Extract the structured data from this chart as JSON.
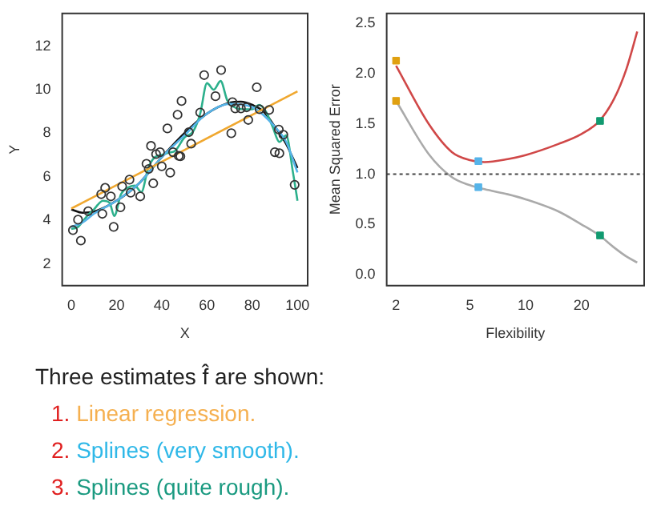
{
  "chart_data": [
    {
      "type": "scatter",
      "xlabel": "X",
      "ylabel": "Y",
      "xlim": [
        -4,
        104.5
      ],
      "ylim": [
        1,
        13.5
      ],
      "xticks": [
        0,
        20,
        40,
        60,
        80,
        100
      ],
      "yticks": [
        2,
        4,
        6,
        8,
        10,
        12
      ],
      "grid": false,
      "series": [
        {
          "type": "scatter",
          "marker": "circle",
          "color": "#333333",
          "x": [
            0.75,
            3,
            4.25,
            7.5,
            13.25,
            15,
            13.75,
            17.5,
            18.75,
            21.75,
            22.5,
            25.75,
            26.25,
            30.5,
            33.25,
            34.25,
            35.25,
            36.25,
            37.5,
            39.25,
            40,
            42.5,
            43.75,
            45,
            47,
            47.5,
            48.25,
            48.75,
            52,
            53,
            57,
            58.75,
            63.75,
            66.25,
            70.75,
            71.25,
            72.5,
            75,
            77.5,
            78.25,
            82,
            83.25,
            87.5,
            90,
            92,
            91.75,
            93.75,
            98.75
          ],
          "values": [
            3.55,
            4.03,
            3.07,
            4.42,
            5.2,
            5.49,
            4.3,
            5.1,
            3.7,
            4.6,
            5.56,
            5.87,
            5.27,
            5.1,
            6.6,
            6.36,
            7.42,
            5.7,
            7.04,
            7.13,
            6.48,
            8.22,
            6.19,
            7.13,
            8.85,
            6.96,
            6.94,
            9.48,
            8.05,
            7.52,
            8.95,
            10.67,
            9.7,
            10.9,
            8.0,
            9.43,
            9.14,
            9.14,
            9.19,
            8.61,
            10.11,
            9.1,
            9.07,
            7.13,
            7.08,
            8.17,
            7.93,
            5.63
          ]
        },
        {
          "type": "line",
          "marker": "none",
          "color": "#f0a830",
          "x": [
            0,
            100
          ],
          "values": [
            4.54,
            9.92
          ]
        },
        {
          "type": "line",
          "marker": "none",
          "color": "#56b4e9",
          "x": [
            0,
            5,
            10,
            20,
            30,
            40,
            50,
            60,
            70,
            80,
            90,
            95,
            100
          ],
          "values": [
            3.7,
            3.9,
            4.3,
            4.9,
            5.7,
            6.9,
            7.9,
            8.9,
            9.35,
            9.2,
            8.3,
            7.6,
            6.2
          ]
        },
        {
          "type": "line",
          "marker": "none",
          "color": "#2cb08c",
          "x": [
            0,
            3,
            7,
            10,
            14,
            17,
            19,
            22,
            25,
            28,
            31,
            34,
            37,
            40,
            43,
            46,
            50,
            54,
            57,
            60,
            63,
            66,
            69,
            72,
            76,
            80,
            83,
            86,
            89,
            92,
            95,
            98,
            100
          ],
          "values": [
            3.6,
            3.7,
            4.2,
            4.5,
            4.9,
            4.8,
            4.2,
            5.2,
            5.5,
            5.6,
            5.3,
            6.4,
            6.9,
            7.0,
            7.1,
            7.2,
            7.8,
            8.1,
            8.9,
            10.3,
            10.0,
            10.4,
            9.5,
            9.2,
            9.1,
            9.1,
            9.3,
            9.0,
            8.3,
            7.6,
            7.9,
            6.2,
            4.9
          ]
        },
        {
          "type": "line",
          "marker": "none",
          "color": "#111111",
          "x": [
            0,
            5,
            10,
            20,
            30,
            40,
            50,
            60,
            70,
            75,
            80,
            85,
            90,
            95,
            100
          ],
          "values": [
            4.5,
            4.35,
            4.4,
            4.9,
            5.7,
            6.9,
            8.0,
            8.9,
            9.4,
            9.45,
            9.3,
            9.0,
            8.3,
            7.5,
            6.4
          ]
        }
      ]
    },
    {
      "type": "line",
      "log": "x",
      "xlabel": "Flexibility",
      "ylabel": "Mean Squared Error",
      "xlim": [
        1.78,
        43.6
      ],
      "ylim": [
        -0.11,
        2.6
      ],
      "xticks": [
        2,
        5,
        10,
        20
      ],
      "yticks": [
        {
          "value": 0,
          "label": "0.0"
        },
        {
          "value": 0.5,
          "label": "0.5"
        },
        {
          "value": 1,
          "label": "1.0"
        },
        {
          "value": 1.5,
          "label": "1.5"
        },
        {
          "value": 2,
          "label": "2.0"
        },
        {
          "value": 2.5,
          "label": "2.5"
        }
      ],
      "grid": false,
      "ref_lines": [
        {
          "axis": "y",
          "value": 1,
          "line_style": "dotted",
          "color": "#444444"
        }
      ],
      "series": [
        {
          "type": "line",
          "marker": "none",
          "color": "#d04848",
          "x": [
            2,
            3,
            4,
            5,
            6,
            8,
            10,
            15,
            20,
            25,
            30,
            35,
            40
          ],
          "values": [
            2.08,
            1.5,
            1.22,
            1.14,
            1.12,
            1.15,
            1.19,
            1.3,
            1.4,
            1.53,
            1.75,
            2.05,
            2.42
          ]
        },
        {
          "type": "line",
          "marker": "none",
          "color": "#aaaaaa",
          "x": [
            2,
            3,
            4,
            5,
            6,
            8,
            10,
            15,
            20,
            25,
            30,
            35,
            40
          ],
          "values": [
            1.73,
            1.2,
            0.97,
            0.89,
            0.85,
            0.8,
            0.75,
            0.63,
            0.5,
            0.39,
            0.27,
            0.18,
            0.12
          ]
        },
        {
          "type": "scatter",
          "marker": "square",
          "colors": [
            "#e0a010",
            "#e0a010",
            "#56b4e9",
            "#56b4e9",
            "#119a70",
            "#119a70"
          ],
          "x": [
            2,
            2,
            5.56,
            5.56,
            25.2,
            25.2
          ],
          "values": [
            2.13,
            1.73,
            1.13,
            0.87,
            1.53,
            0.39
          ]
        }
      ]
    },
    {
      "type": "other",
      "annotations": [
        "Three estimates f̂ are shown:",
        "1. Linear regression.",
        "2. Splines (very smooth).",
        "3. Splines (quite rough)."
      ]
    }
  ]
}
